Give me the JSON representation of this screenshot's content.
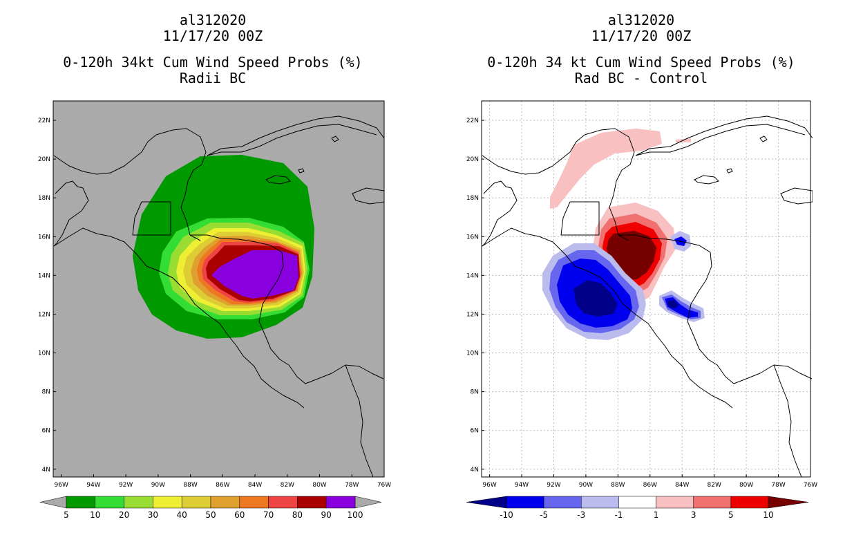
{
  "left": {
    "title_lines": [
      "al312020",
      "11/17/20 00Z",
      "0-120h 34kt Cum Wind Speed Probs (%)",
      "Radii BC"
    ],
    "colorbar": {
      "colors": [
        "#009900",
        "#33dd33",
        "#99dd33",
        "#eeee33",
        "#ddcc33",
        "#e0a030",
        "#ee7722",
        "#ee4444",
        "#aa0000",
        "#8800dd"
      ],
      "labels": [
        "5",
        "10",
        "20",
        "30",
        "40",
        "50",
        "60",
        "70",
        "80",
        "90",
        "100"
      ]
    }
  },
  "right": {
    "title_lines": [
      "al312020",
      "11/17/20 00Z",
      "0-120h 34 kt Cum Wind Speed Probs (%)",
      "Rad BC - Control"
    ],
    "colorbar": {
      "colors": [
        "#000088",
        "#0000ee",
        "#6666ee",
        "#bbbbee",
        "#ffffff",
        "#f8c0c0",
        "#f07070",
        "#ee0000",
        "#770000"
      ],
      "labels": [
        "-10",
        "-5",
        "-3",
        "-1",
        "1",
        "3",
        "5",
        "10"
      ]
    }
  },
  "axes": {
    "lon_labels": [
      "96W",
      "94W",
      "92W",
      "90W",
      "88W",
      "86W",
      "84W",
      "82W",
      "80W",
      "78W",
      "76W"
    ],
    "lat_labels": [
      "4N",
      "6N",
      "8N",
      "10N",
      "12N",
      "14N",
      "16N",
      "18N",
      "20N",
      "22N"
    ],
    "lon_range": [
      -96.5,
      -76
    ],
    "lat_range": [
      3.6,
      23
    ]
  },
  "map_colors": {
    "land_background": "#aaaaaa",
    "coast": "#000000",
    "grid": "#bbbbbb"
  }
}
